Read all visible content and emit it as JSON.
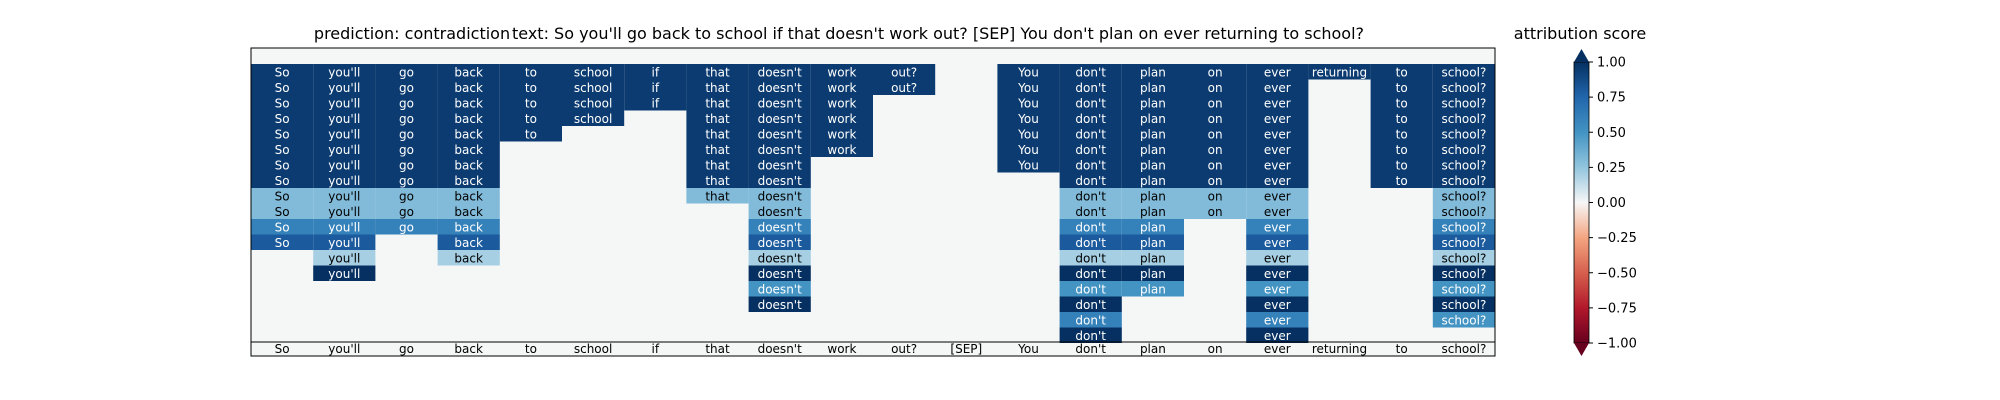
{
  "chart_data": {
    "type": "heatmap",
    "title_prediction": "prediction:  contradiction",
    "title_text": "text:  So you'll go back to school if that doesn't work out? [SEP] You don't plan on ever returning to school?",
    "tokens": [
      "So",
      "you'll",
      "go",
      "back",
      "to",
      "school",
      "if",
      "that",
      "doesn't",
      "work",
      "out?",
      "[SEP]",
      "You",
      "don't",
      "plan",
      "on",
      "ever",
      "returning",
      "to",
      "school?"
    ],
    "rows": [
      [
        0.95,
        0.95,
        0.95,
        0.95,
        0.95,
        0.95,
        0.95,
        0.95,
        0.95,
        0.95,
        0.95,
        null,
        0.95,
        0.95,
        0.95,
        0.95,
        0.95,
        0.95,
        0.95,
        0.95
      ],
      [
        0.95,
        0.95,
        0.95,
        0.95,
        0.95,
        0.95,
        0.95,
        0.95,
        0.95,
        0.95,
        0.95,
        null,
        0.95,
        0.95,
        0.95,
        0.95,
        0.95,
        null,
        0.95,
        0.95
      ],
      [
        0.95,
        0.95,
        0.95,
        0.95,
        0.95,
        0.95,
        0.95,
        0.95,
        0.95,
        0.95,
        null,
        null,
        0.95,
        0.95,
        0.95,
        0.95,
        0.95,
        null,
        0.95,
        0.95
      ],
      [
        0.95,
        0.95,
        0.95,
        0.95,
        0.95,
        0.95,
        null,
        0.95,
        0.95,
        0.95,
        null,
        null,
        0.95,
        0.95,
        0.95,
        0.95,
        0.95,
        null,
        0.95,
        0.95
      ],
      [
        0.95,
        0.95,
        0.95,
        0.95,
        0.95,
        null,
        null,
        0.95,
        0.95,
        0.95,
        null,
        null,
        0.95,
        0.95,
        0.95,
        0.95,
        0.95,
        null,
        0.95,
        0.95
      ],
      [
        0.95,
        0.95,
        0.95,
        0.95,
        null,
        null,
        null,
        0.95,
        0.95,
        0.95,
        null,
        null,
        0.95,
        0.95,
        0.95,
        0.95,
        0.95,
        null,
        0.95,
        0.95
      ],
      [
        0.95,
        0.95,
        0.95,
        0.95,
        null,
        null,
        null,
        0.95,
        0.95,
        null,
        null,
        null,
        0.95,
        0.95,
        0.95,
        0.95,
        0.95,
        null,
        0.95,
        0.95
      ],
      [
        0.95,
        0.95,
        0.95,
        0.95,
        null,
        null,
        null,
        0.95,
        0.95,
        null,
        null,
        null,
        null,
        0.95,
        0.95,
        0.95,
        0.95,
        null,
        0.95,
        0.95
      ],
      [
        0.3,
        0.3,
        0.3,
        0.3,
        null,
        null,
        null,
        0.3,
        0.3,
        null,
        null,
        null,
        null,
        0.3,
        0.3,
        0.3,
        0.3,
        null,
        null,
        0.3
      ],
      [
        0.3,
        0.3,
        0.3,
        0.3,
        null,
        null,
        null,
        null,
        0.3,
        null,
        null,
        null,
        null,
        0.3,
        0.3,
        0.3,
        0.3,
        null,
        null,
        0.3
      ],
      [
        0.6,
        0.6,
        0.6,
        0.6,
        null,
        null,
        null,
        null,
        0.6,
        null,
        null,
        null,
        null,
        0.6,
        0.6,
        null,
        0.6,
        null,
        null,
        0.6
      ],
      [
        0.8,
        0.8,
        null,
        0.8,
        null,
        null,
        null,
        null,
        0.8,
        null,
        null,
        null,
        null,
        0.8,
        0.8,
        null,
        0.8,
        null,
        null,
        0.8
      ],
      [
        null,
        0.2,
        null,
        0.2,
        null,
        null,
        null,
        null,
        0.2,
        null,
        null,
        null,
        null,
        0.2,
        0.2,
        null,
        0.2,
        null,
        null,
        0.2
      ],
      [
        null,
        1.0,
        null,
        null,
        null,
        null,
        null,
        null,
        1.0,
        null,
        null,
        null,
        null,
        1.0,
        1.0,
        null,
        1.0,
        null,
        null,
        1.0
      ],
      [
        null,
        null,
        null,
        null,
        null,
        null,
        null,
        null,
        0.5,
        null,
        null,
        null,
        null,
        0.5,
        0.5,
        null,
        0.5,
        null,
        null,
        0.5
      ],
      [
        null,
        null,
        null,
        null,
        null,
        null,
        null,
        null,
        1.0,
        null,
        null,
        null,
        null,
        1.0,
        null,
        null,
        1.0,
        null,
        null,
        1.0
      ],
      [
        null,
        null,
        null,
        null,
        null,
        null,
        null,
        null,
        null,
        null,
        null,
        null,
        null,
        0.6,
        null,
        null,
        0.6,
        null,
        null,
        0.5
      ],
      [
        null,
        null,
        null,
        null,
        null,
        null,
        null,
        null,
        null,
        null,
        null,
        null,
        null,
        1.0,
        null,
        null,
        1.0,
        null,
        null,
        null
      ]
    ],
    "colorbar": {
      "label": "attribution score",
      "range": [
        -1.0,
        1.0
      ],
      "ticks": [
        "1.00",
        "0.75",
        "0.50",
        "0.25",
        "0.00",
        "−0.25",
        "−0.50",
        "−0.75",
        "−1.00"
      ]
    }
  }
}
